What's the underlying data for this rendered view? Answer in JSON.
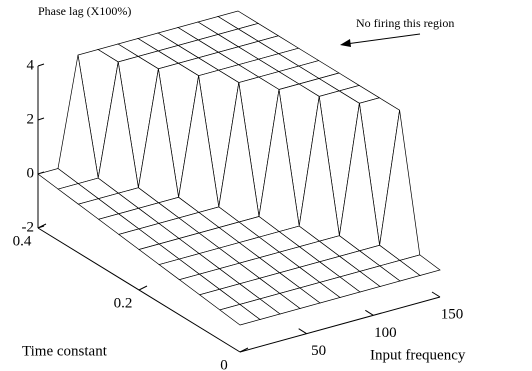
{
  "chart_data": {
    "type": "surface",
    "zlabel": "Phase lag (X100%)",
    "xlabel": "Input frequency",
    "ylabel": "Time constant",
    "annotation": "No firing this region",
    "x": [
      0,
      15,
      30,
      45,
      60,
      75,
      90,
      105,
      120,
      135,
      150
    ],
    "y": [
      0,
      0.04,
      0.08,
      0.12,
      0.16,
      0.2,
      0.24,
      0.28,
      0.32,
      0.36,
      0.4
    ],
    "z": [
      [
        -1,
        -1,
        -1,
        -1,
        -1,
        -1,
        -1,
        -1,
        -1,
        -1,
        -1
      ],
      [
        -0.9,
        -0.9,
        -0.9,
        -0.9,
        -0.9,
        -0.9,
        -0.9,
        -0.9,
        -0.9,
        -0.9,
        -0.9
      ],
      [
        -0.8,
        -0.8,
        -0.8,
        -0.8,
        -0.8,
        -0.8,
        -0.8,
        -0.8,
        -0.8,
        -0.8,
        4
      ],
      [
        -0.7,
        -0.7,
        -0.7,
        -0.7,
        -0.7,
        -0.7,
        -0.7,
        -0.7,
        -0.7,
        4,
        4
      ],
      [
        -0.6,
        -0.6,
        -0.6,
        -0.6,
        -0.6,
        -0.6,
        -0.6,
        -0.6,
        4,
        4,
        4
      ],
      [
        -0.5,
        -0.5,
        -0.5,
        -0.5,
        -0.5,
        -0.5,
        -0.5,
        4,
        4,
        4,
        4
      ],
      [
        -0.4,
        -0.4,
        -0.4,
        -0.4,
        -0.4,
        -0.4,
        4,
        4,
        4,
        4,
        4
      ],
      [
        -0.3,
        -0.3,
        -0.3,
        -0.3,
        -0.3,
        4,
        4,
        4,
        4,
        4,
        4
      ],
      [
        -0.2,
        -0.2,
        -0.2,
        -0.2,
        4,
        4,
        4,
        4,
        4,
        4,
        4
      ],
      [
        -0.1,
        -0.1,
        -0.1,
        4,
        4,
        4,
        4,
        4,
        4,
        4,
        4
      ],
      [
        0,
        0,
        4,
        4,
        4,
        4,
        4,
        4,
        4,
        4,
        4
      ]
    ],
    "xlim": [
      0,
      150
    ],
    "xticks": [
      50,
      100,
      150
    ],
    "ylim": [
      0,
      0.4
    ],
    "yticks": [
      0,
      0.2,
      0.4
    ],
    "zlim": [
      -2,
      4
    ],
    "zticks": [
      -2,
      0,
      2,
      4
    ],
    "color": "#ffffff"
  }
}
